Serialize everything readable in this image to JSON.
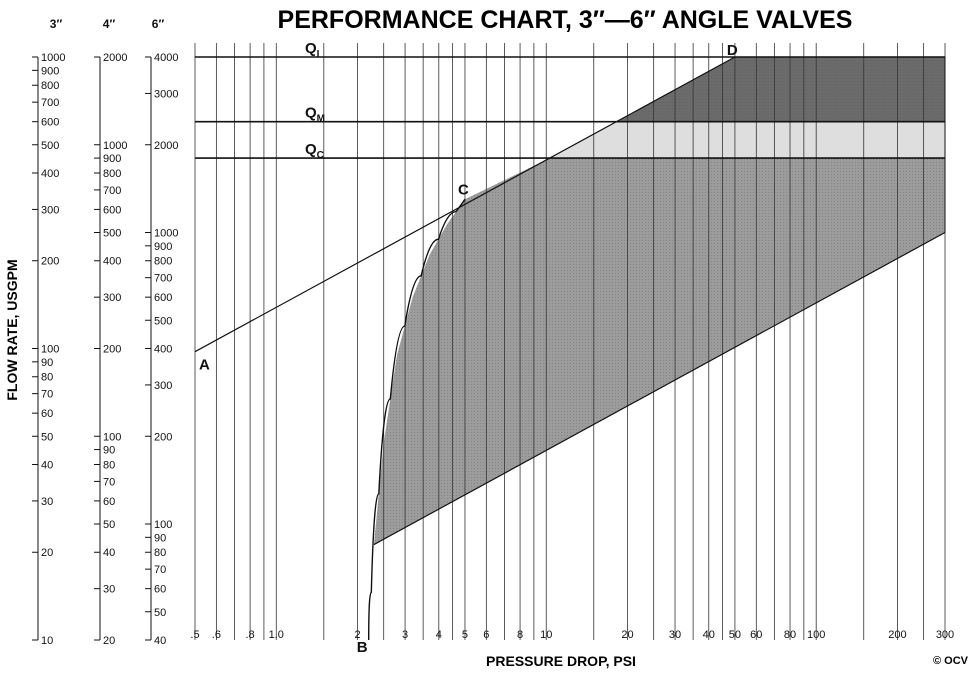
{
  "chart_data": {
    "type": "line",
    "title": "PERFORMANCE CHART, 3″—6″ ANGLE VALVES",
    "xlabel": "PRESSURE DROP, PSI",
    "ylabel": "FLOW RATE, USGPM",
    "x_scale": "log",
    "xlim": [
      0.5,
      300
    ],
    "x_tick_labels": [
      {
        "v": 0.5,
        "t": ".5"
      },
      {
        "v": 0.6,
        "t": ".6"
      },
      {
        "v": 0.8,
        "t": ".8"
      },
      {
        "v": 1.0,
        "t": "1.0"
      },
      {
        "v": 2,
        "t": "2"
      },
      {
        "v": 3,
        "t": "3"
      },
      {
        "v": 4,
        "t": "4"
      },
      {
        "v": 5,
        "t": "5"
      },
      {
        "v": 6,
        "t": "6"
      },
      {
        "v": 8,
        "t": "8"
      },
      {
        "v": 10,
        "t": "10"
      },
      {
        "v": 20,
        "t": "20"
      },
      {
        "v": 30,
        "t": "30"
      },
      {
        "v": 40,
        "t": "40"
      },
      {
        "v": 50,
        "t": "50"
      },
      {
        "v": 60,
        "t": "60"
      },
      {
        "v": 80,
        "t": "80"
      },
      {
        "v": 100,
        "t": "100"
      },
      {
        "v": 200,
        "t": "200"
      },
      {
        "v": 300,
        "t": "300"
      }
    ],
    "x_gridlines": [
      0.5,
      0.6,
      0.7,
      0.8,
      0.9,
      1,
      1.5,
      2,
      2.5,
      3,
      3.5,
      4,
      4.5,
      5,
      6,
      7,
      8,
      9,
      10,
      15,
      20,
      25,
      30,
      35,
      40,
      45,
      50,
      60,
      70,
      80,
      90,
      100,
      150,
      200,
      250,
      300
    ],
    "y_axes": [
      {
        "name": "3″",
        "min": 10,
        "max": 1000,
        "labels": [
          10,
          20,
          30,
          40,
          50,
          60,
          70,
          80,
          90,
          100,
          200,
          300,
          400,
          500,
          600,
          700,
          800,
          900,
          1000
        ]
      },
      {
        "name": "4″",
        "min": 20,
        "max": 2000,
        "labels": [
          20,
          30,
          40,
          50,
          60,
          70,
          80,
          90,
          100,
          200,
          300,
          400,
          500,
          600,
          700,
          800,
          900,
          1000,
          2000
        ]
      },
      {
        "name": "6″",
        "min": 40,
        "max": 4000,
        "labels": [
          40,
          50,
          60,
          70,
          80,
          90,
          100,
          200,
          300,
          400,
          500,
          600,
          700,
          800,
          900,
          1000,
          2000,
          3000,
          4000
        ]
      }
    ],
    "flow_limits": [
      {
        "name": "QI",
        "main": "Q",
        "sub": "I",
        "flow_6in": 4000
      },
      {
        "name": "QM",
        "main": "Q",
        "sub": "M",
        "flow_6in": 2400
      },
      {
        "name": "QC",
        "main": "Q",
        "sub": "C",
        "flow_6in": 1800
      }
    ],
    "points": [
      {
        "label": "A",
        "x": 0.5,
        "flow_6in": 390
      },
      {
        "label": "B",
        "x": 2.2,
        "flow_6in": 40
      },
      {
        "label": "C",
        "x": 5,
        "flow_6in": 1300
      },
      {
        "label": "D",
        "x": 50,
        "flow_6in": 4000
      }
    ],
    "lines": [
      {
        "name": "A-D",
        "x": [
          0.5,
          50
        ],
        "flow_6in": [
          390,
          4000
        ]
      },
      {
        "name": "lower",
        "x": [
          2.3,
          300
        ],
        "flow_6in": [
          85,
          1000
        ]
      },
      {
        "name": "B-C curve",
        "x": [
          2.2,
          2.3,
          2.5,
          2.8,
          3.2,
          3.7,
          4.3,
          5
        ],
        "flow_6in": [
          40,
          85,
          190,
          380,
          600,
          840,
          1070,
          1300
        ]
      }
    ],
    "regions": [
      {
        "name": "operating-region",
        "fill": "#9c9c9c"
      },
      {
        "name": "qc-qm-band",
        "fill": "#dedede"
      },
      {
        "name": "qm-qi-band",
        "fill": "#6b6b6b"
      }
    ],
    "copyright": "© OCV"
  }
}
